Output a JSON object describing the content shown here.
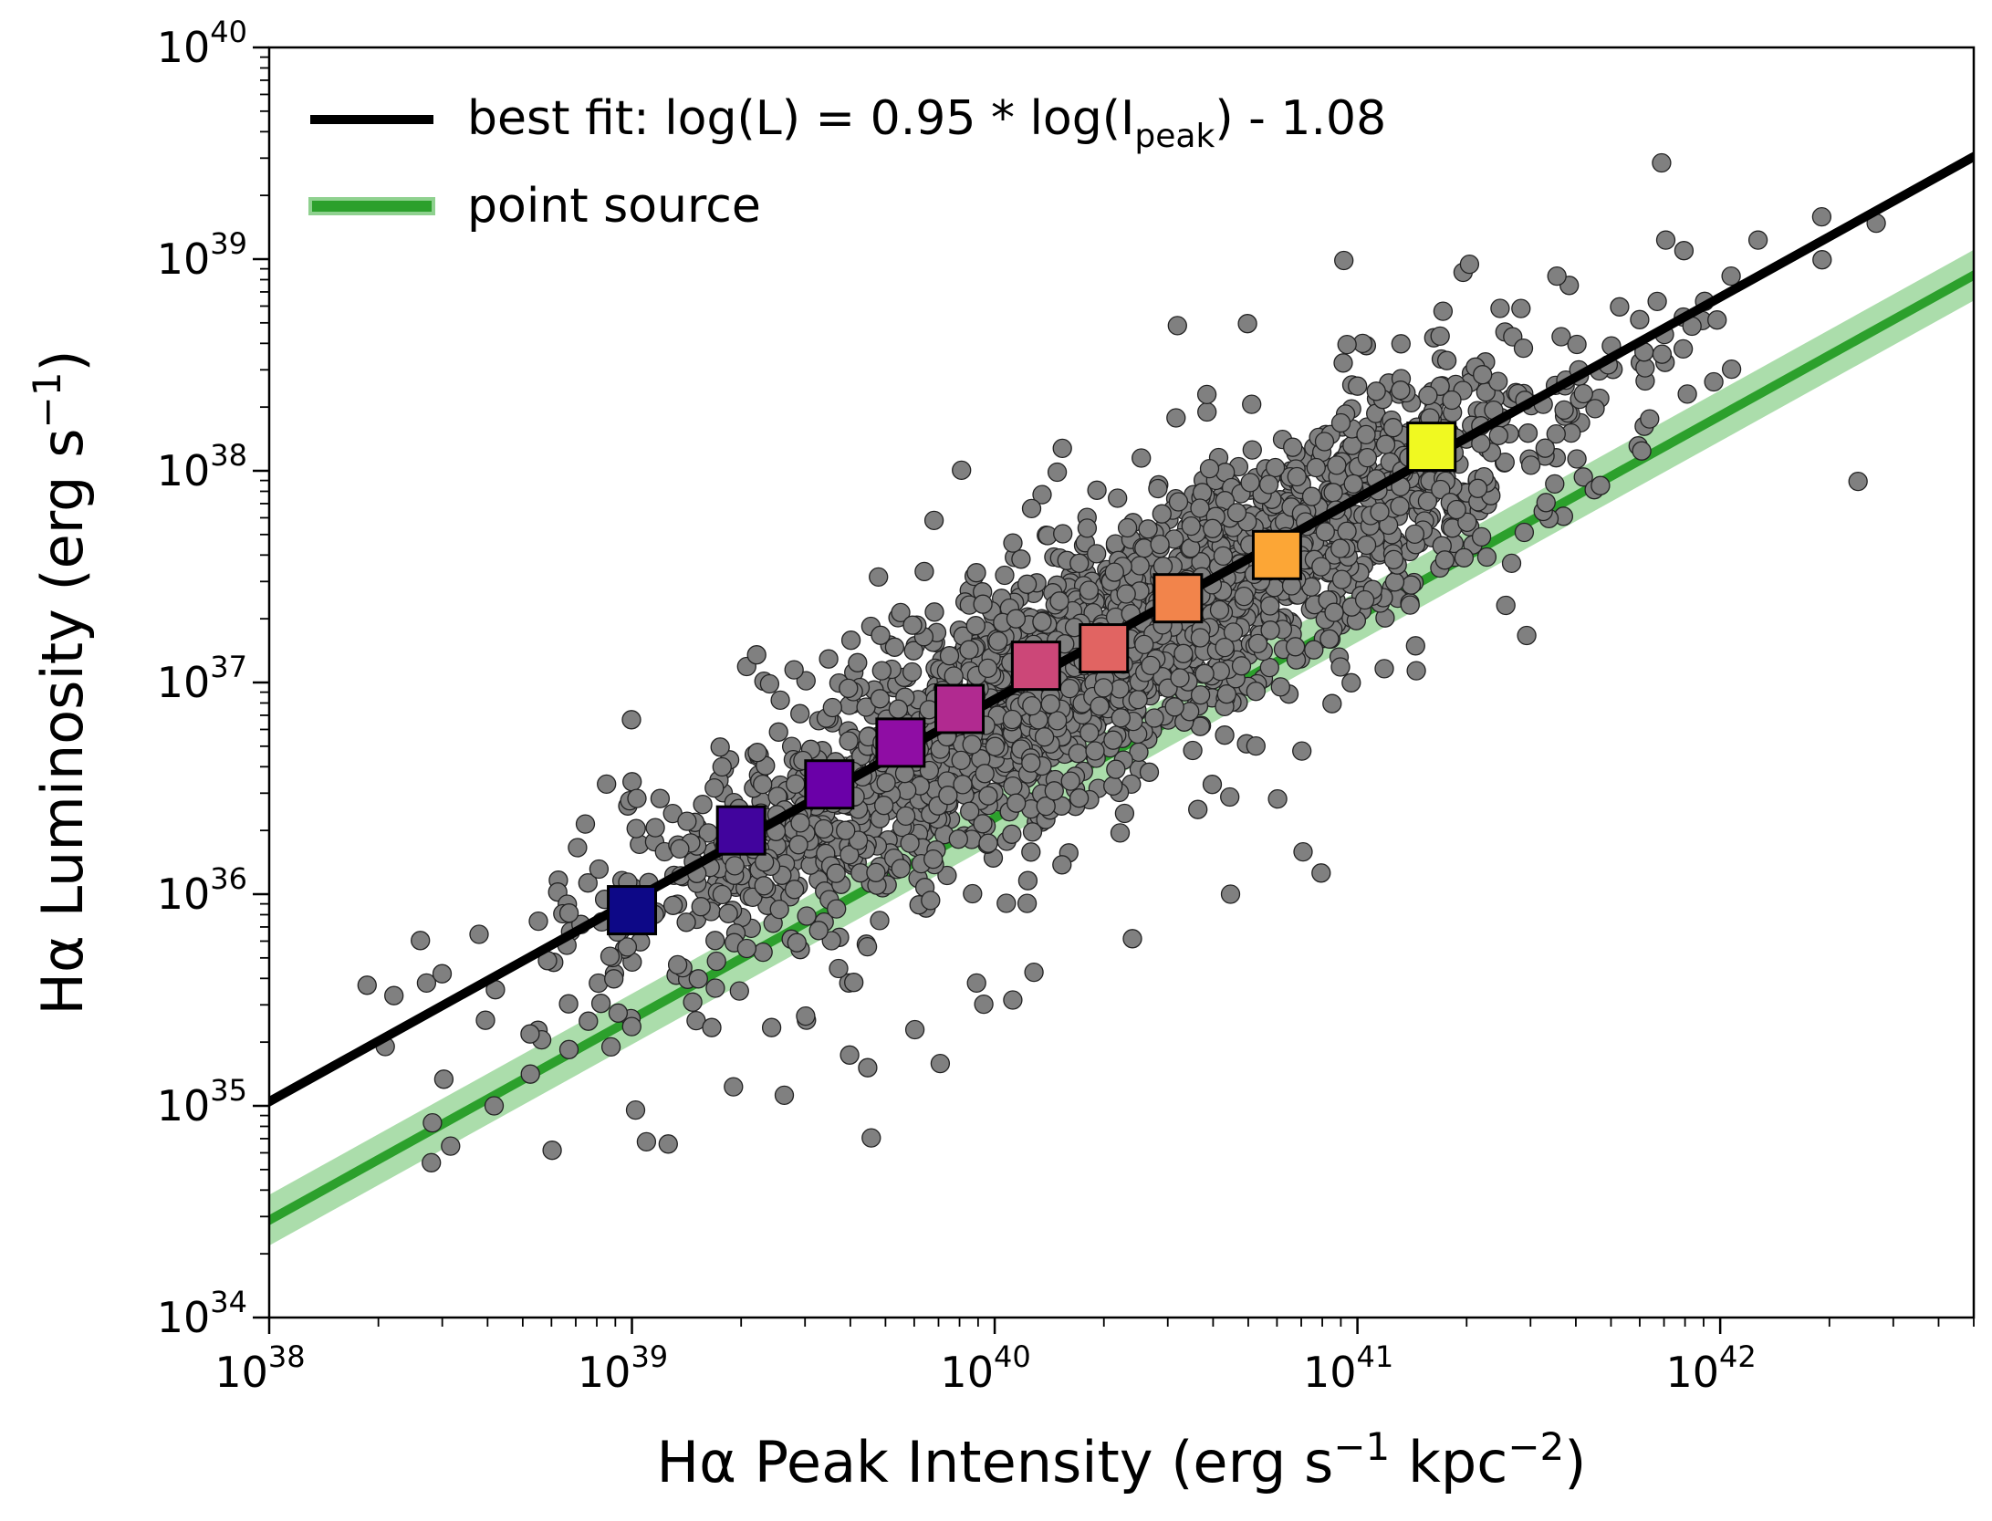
{
  "chart_data": {
    "type": "scatter",
    "xscale": "log",
    "yscale": "log",
    "xlim": [
      1e+38,
      5e+42
    ],
    "ylim": [
      1e+34,
      1e+40
    ],
    "xlabel": {
      "base": "Hα Peak Intensity (erg s",
      "sup1": "−1",
      "mid": " kpc",
      "sup2": "−2",
      "end": ")"
    },
    "ylabel": {
      "base": "Hα Luminosity (erg s",
      "sup": "−1",
      "end": ")"
    },
    "x_major_ticks": [
      {
        "value": 1e+38,
        "base": "10",
        "exp": "38"
      },
      {
        "value": 1e+39,
        "base": "10",
        "exp": "39"
      },
      {
        "value": 1e+40,
        "base": "10",
        "exp": "40"
      },
      {
        "value": 1e+41,
        "base": "10",
        "exp": "41"
      },
      {
        "value": 1e+42,
        "base": "10",
        "exp": "42"
      }
    ],
    "y_major_ticks": [
      {
        "value": 1e+34,
        "base": "10",
        "exp": "34"
      },
      {
        "value": 1e+35,
        "base": "10",
        "exp": "35"
      },
      {
        "value": 1e+36,
        "base": "10",
        "exp": "36"
      },
      {
        "value": 1e+37,
        "base": "10",
        "exp": "37"
      },
      {
        "value": 1e+38,
        "base": "10",
        "exp": "38"
      },
      {
        "value": 1e+39,
        "base": "10",
        "exp": "39"
      },
      {
        "value": 1e+40,
        "base": "10",
        "exp": "40"
      }
    ],
    "legend": {
      "placement": "top-left",
      "entries": [
        {
          "name": "best_fit",
          "color": "#000000",
          "label_pre": "best fit: log(L) = 0.95 * log(I",
          "label_sub": "peak",
          "label_post": ") - 1.08"
        },
        {
          "name": "point_source",
          "color": "#2ca02c",
          "label_pre": "point source",
          "label_sub": "",
          "label_post": ""
        }
      ]
    },
    "best_fit": {
      "slope": 0.95,
      "intercept": -1.08,
      "color": "#000000"
    },
    "point_source": {
      "slope": 0.95,
      "intercept": -1.64,
      "band_dex": 0.12,
      "color": "#2ca02c",
      "band_color": "#8fd18f"
    },
    "scatter_style": {
      "fill": "#808080",
      "edge": "#222222",
      "n_points": 2600,
      "description_only": false
    },
    "scatter_model": {
      "x_log_mean": 40.3,
      "x_log_sd": 0.62,
      "x_log_min": 38.25,
      "x_log_max": 42.45,
      "scatter_dex": 0.26,
      "outlier_dex": 0.5
    },
    "scatter_points": [
      [
        38.27,
        35.57
      ],
      [
        38.32,
        35.28
      ],
      [
        38.45,
        34.92
      ],
      [
        38.5,
        34.81
      ],
      [
        38.62,
        35.0
      ],
      [
        38.72,
        35.15
      ],
      [
        38.78,
        34.79
      ],
      [
        38.88,
        35.4
      ],
      [
        38.85,
        36.22
      ],
      [
        38.93,
        36.52
      ],
      [
        38.95,
        35.6
      ],
      [
        39.01,
        34.98
      ],
      [
        39.04,
        34.83
      ],
      [
        39.1,
        34.82
      ],
      [
        39.22,
        35.37
      ],
      [
        39.28,
        35.09
      ],
      [
        39.42,
        35.05
      ],
      [
        39.6,
        35.24
      ],
      [
        39.65,
        35.18
      ],
      [
        39.78,
        35.36
      ],
      [
        39.85,
        35.2
      ],
      [
        39.95,
        35.58
      ],
      [
        39.97,
        35.48
      ],
      [
        40.05,
        35.5
      ],
      [
        40.22,
        37.26
      ],
      [
        40.43,
        37.08
      ],
      [
        40.56,
        36.4
      ],
      [
        40.72,
        36.7
      ],
      [
        40.78,
        36.45
      ],
      [
        40.93,
        36.9
      ],
      [
        41.02,
        37.39
      ],
      [
        41.1,
        37.58
      ],
      [
        41.12,
        38.6
      ],
      [
        41.2,
        38.25
      ],
      [
        41.55,
        38.92
      ],
      [
        41.7,
        38.59
      ],
      [
        41.85,
        39.09
      ],
      [
        41.9,
        39.04
      ],
      [
        42.03,
        38.92
      ],
      [
        42.28,
        39.2
      ],
      [
        42.43,
        39.17
      ],
      [
        42.38,
        37.95
      ],
      [
        41.52,
        37.85
      ],
      [
        41.67,
        37.93
      ],
      [
        40.85,
        36.2
      ],
      [
        40.65,
        36.0
      ],
      [
        40.9,
        36.1
      ],
      [
        40.5,
        38.25
      ],
      [
        40.1,
        36.62
      ],
      [
        39.9,
        36.26
      ]
    ],
    "binned_points": [
      {
        "x": 1e+39,
        "y": 8.4e+35,
        "color": "#0d0887"
      },
      {
        "x": 2e+39,
        "y": 2e+36,
        "color": "#41049d"
      },
      {
        "x": 3.5e+39,
        "y": 3.3e+36,
        "color": "#6a00a8"
      },
      {
        "x": 5.5e+39,
        "y": 5.2e+36,
        "color": "#8f0da4"
      },
      {
        "x": 8e+39,
        "y": 7.5e+36,
        "color": "#b12a90"
      },
      {
        "x": 1.3e+40,
        "y": 1.2e+37,
        "color": "#cc4778"
      },
      {
        "x": 2e+40,
        "y": 1.45e+37,
        "color": "#e16462"
      },
      {
        "x": 3.2e+40,
        "y": 2.5e+37,
        "color": "#f2844b"
      },
      {
        "x": 6e+40,
        "y": 4e+37,
        "color": "#fca636"
      },
      {
        "x": 1.6e+41,
        "y": 1.3e+38,
        "color": "#f0f921"
      }
    ]
  }
}
